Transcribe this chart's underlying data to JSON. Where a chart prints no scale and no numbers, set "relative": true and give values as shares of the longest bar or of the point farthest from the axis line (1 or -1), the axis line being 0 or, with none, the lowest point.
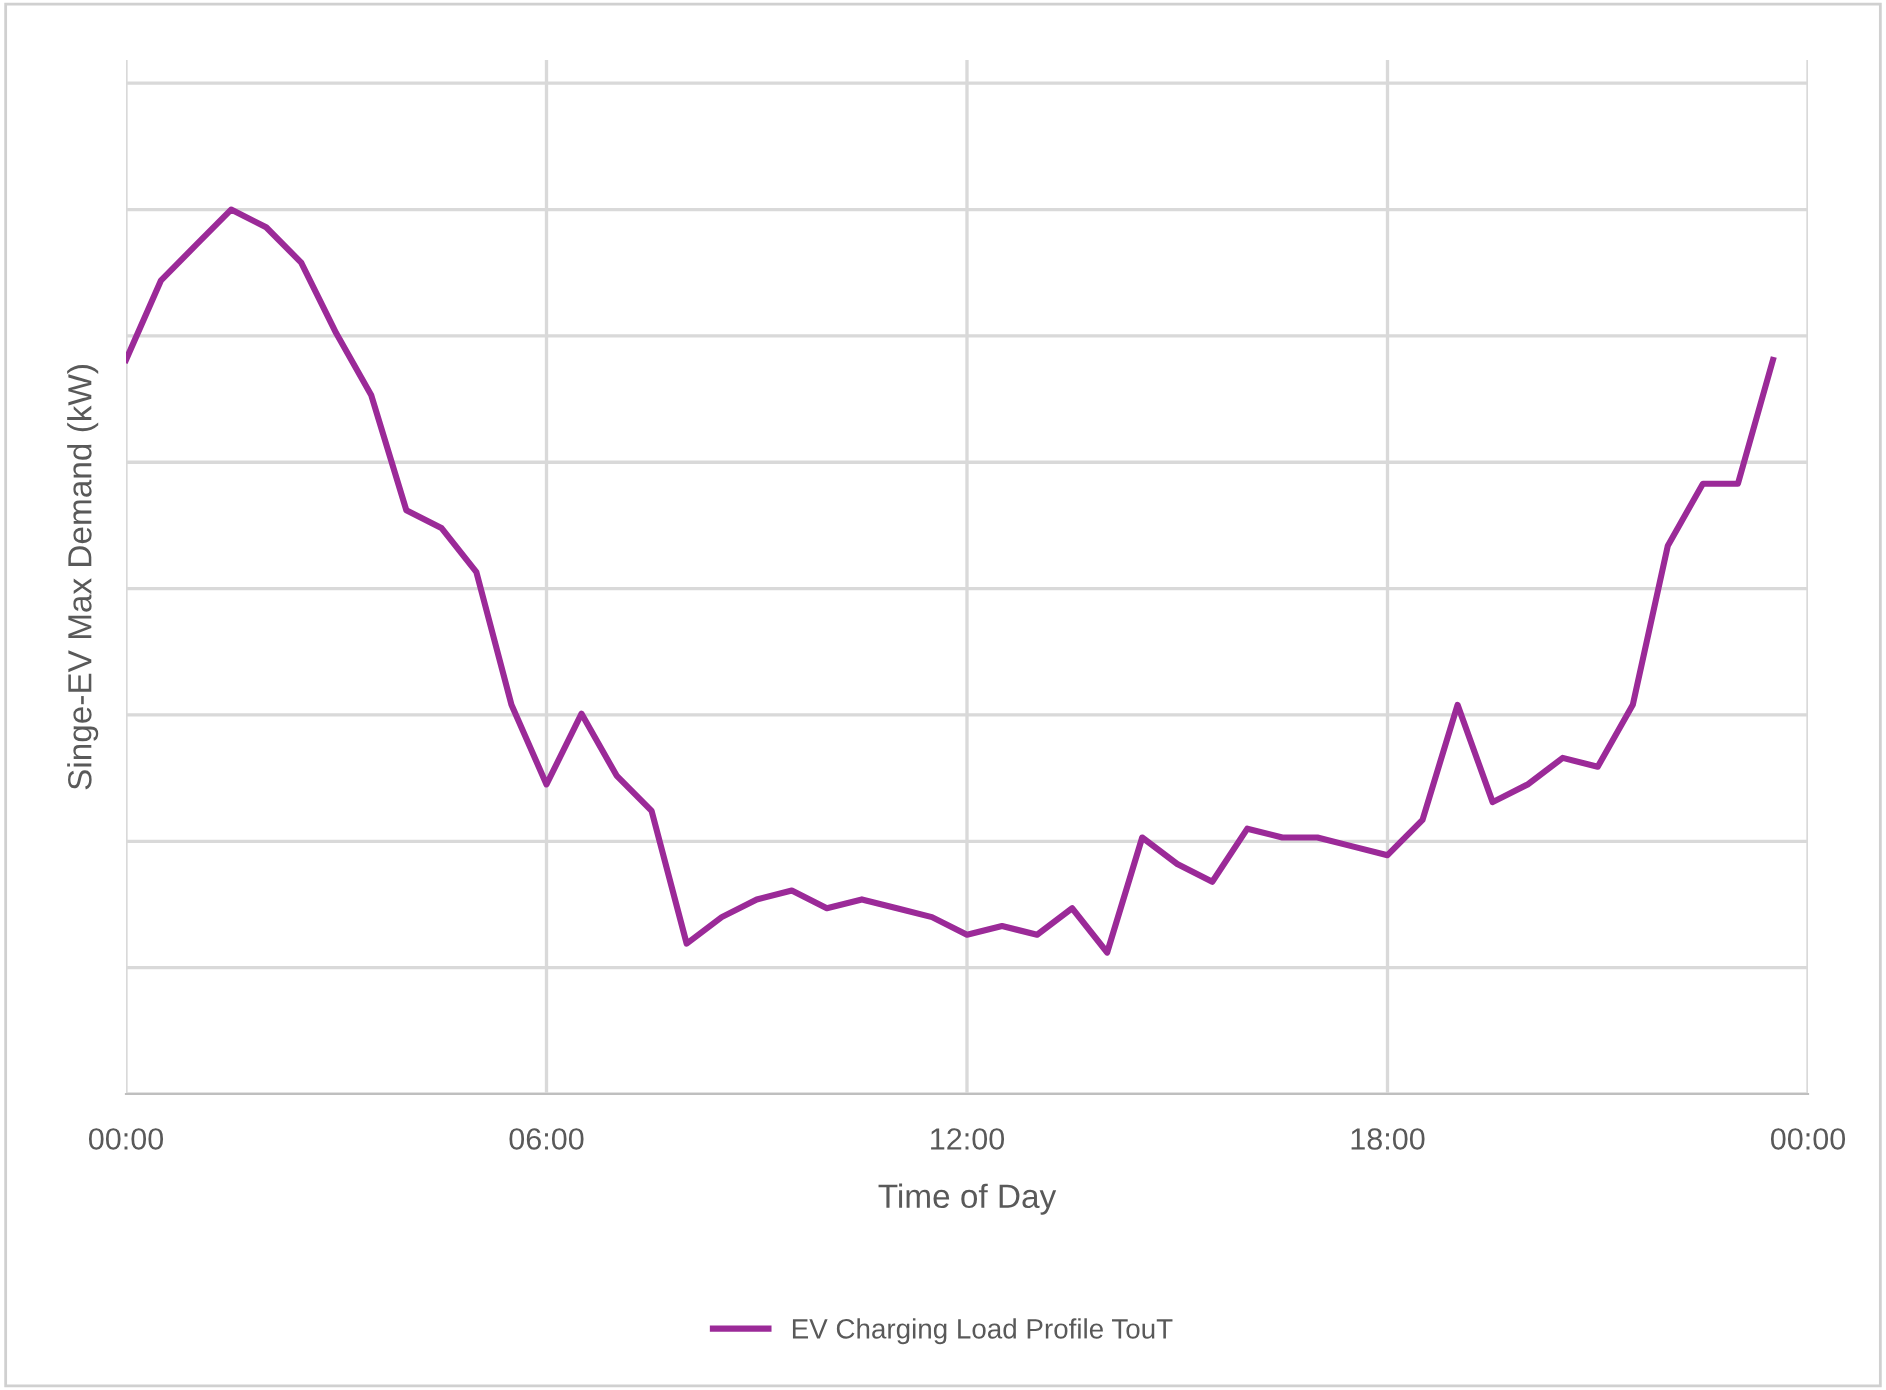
{
  "chart_data": {
    "type": "line",
    "relative": true,
    "xlabel": "Time of Day",
    "ylabel": "Singe-EV Max Demand (kW)",
    "x": [
      0,
      0.5,
      1,
      1.5,
      2,
      2.5,
      3,
      3.5,
      4,
      4.5,
      5,
      5.5,
      6,
      6.5,
      7,
      7.5,
      8,
      8.5,
      9,
      9.5,
      10,
      10.5,
      11,
      11.5,
      12,
      12.5,
      13,
      13.5,
      14,
      14.5,
      15,
      15.5,
      16,
      16.5,
      17,
      17.5,
      18,
      18.5,
      19,
      19.5,
      20,
      20.5,
      21,
      21.5,
      22,
      22.5,
      23,
      23.5
    ],
    "xlim": [
      0,
      24
    ],
    "xticks": [
      {
        "value": 0,
        "label": "00:00"
      },
      {
        "value": 6,
        "label": "06:00"
      },
      {
        "value": 12,
        "label": "12:00"
      },
      {
        "value": 18,
        "label": "18:00"
      },
      {
        "value": 24,
        "label": "00:00"
      }
    ],
    "series": [
      {
        "name": "EV Charging Load Profile TouT",
        "color": "#9b2a98",
        "values": [
          0.83,
          0.92,
          0.96,
          1.0,
          0.98,
          0.94,
          0.86,
          0.79,
          0.66,
          0.64,
          0.59,
          0.44,
          0.35,
          0.43,
          0.36,
          0.32,
          0.17,
          0.2,
          0.22,
          0.23,
          0.21,
          0.22,
          0.21,
          0.2,
          0.18,
          0.19,
          0.18,
          0.21,
          0.16,
          0.29,
          0.26,
          0.24,
          0.3,
          0.29,
          0.29,
          0.28,
          0.27,
          0.31,
          0.44,
          0.33,
          0.35,
          0.38,
          0.37,
          0.44,
          0.62,
          0.69,
          0.69,
          0.83
        ]
      }
    ],
    "grid": true,
    "legend": "bottom",
    "marker": "none",
    "line_style": "solid"
  }
}
